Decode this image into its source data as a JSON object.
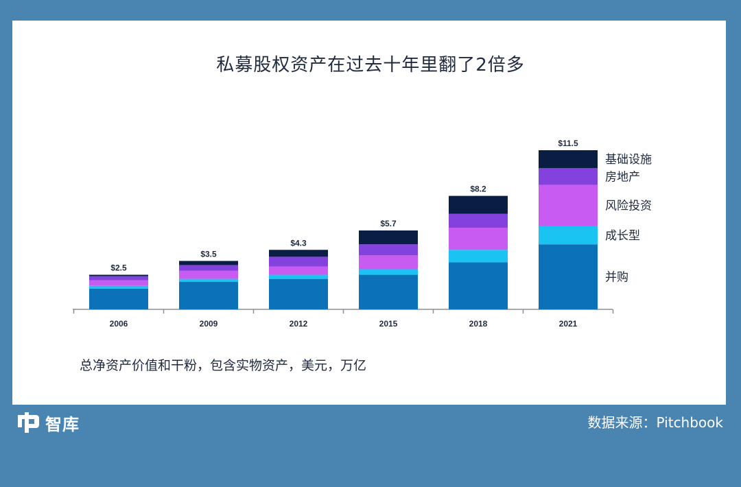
{
  "title": "私募股权资产在过去十年里翻了2倍多",
  "footnote": "总净资产价值和干粉，包含实物资产，美元，万亿",
  "source": "数据来源：Pitchbook",
  "logo_text": "智库",
  "chart_data": {
    "type": "bar",
    "stacked": true,
    "categories": [
      "2006",
      "2009",
      "2012",
      "2015",
      "2018",
      "2021"
    ],
    "totals": [
      2.5,
      3.5,
      4.3,
      5.7,
      8.2,
      11.5
    ],
    "total_labels": [
      "$2.5",
      "$3.5",
      "$4.3",
      "$5.7",
      "$8.2",
      "$11.5"
    ],
    "series": [
      {
        "name": "并购",
        "color": "#0b72b9",
        "values": [
          1.5,
          2.0,
          2.2,
          2.5,
          3.4,
          4.7
        ]
      },
      {
        "name": "成长型",
        "color": "#19c4f2",
        "values": [
          0.2,
          0.2,
          0.3,
          0.4,
          0.9,
          1.3
        ]
      },
      {
        "name": "风险投资",
        "color": "#c85bf2",
        "values": [
          0.4,
          0.6,
          0.6,
          1.0,
          1.6,
          3.0
        ]
      },
      {
        "name": "房地产",
        "color": "#8342de",
        "values": [
          0.3,
          0.4,
          0.7,
          0.8,
          1.0,
          1.2
        ]
      },
      {
        "name": "基础设施",
        "color": "#0a1e44",
        "values": [
          0.1,
          0.3,
          0.5,
          1.0,
          1.3,
          1.3
        ]
      }
    ],
    "legend_position": "right"
  }
}
